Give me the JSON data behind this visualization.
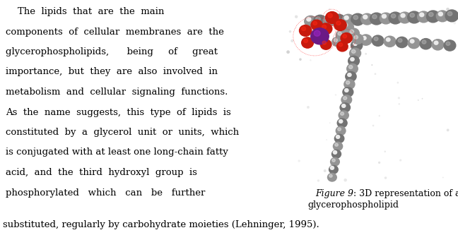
{
  "background_color": "#ffffff",
  "fig_width": 6.48,
  "fig_height": 3.33,
  "dpi": 100,
  "main_text_lines": [
    "    The  lipids  that  are  the  main",
    "components  of  cellular  membranes  are  the",
    "glycerophospholipids,      being     of     great",
    "importance,  but  they  are  also  involved  in",
    "metabolism  and  cellular  signaling  functions.",
    "As  the  name  suggests,  this  type  of  lipids  is",
    "constituted  by  a  glycerol  unit  or  units,  which",
    "is conjugated with at least one long-chain fatty",
    "acid,  and  the  third  hydroxyl  group  is",
    "phosphorylated   which   can   be   further"
  ],
  "bottom_text": "substituted, regularly by carbohydrate moieties (Lehninger, 1995).",
  "caption_italic": "Figure 9",
  "caption_normal": ": 3D representation of a",
  "caption_line2": "glycerophospholipid",
  "text_fontsize": 9.5,
  "caption_fontsize": 9.0,
  "text_color": "#000000"
}
